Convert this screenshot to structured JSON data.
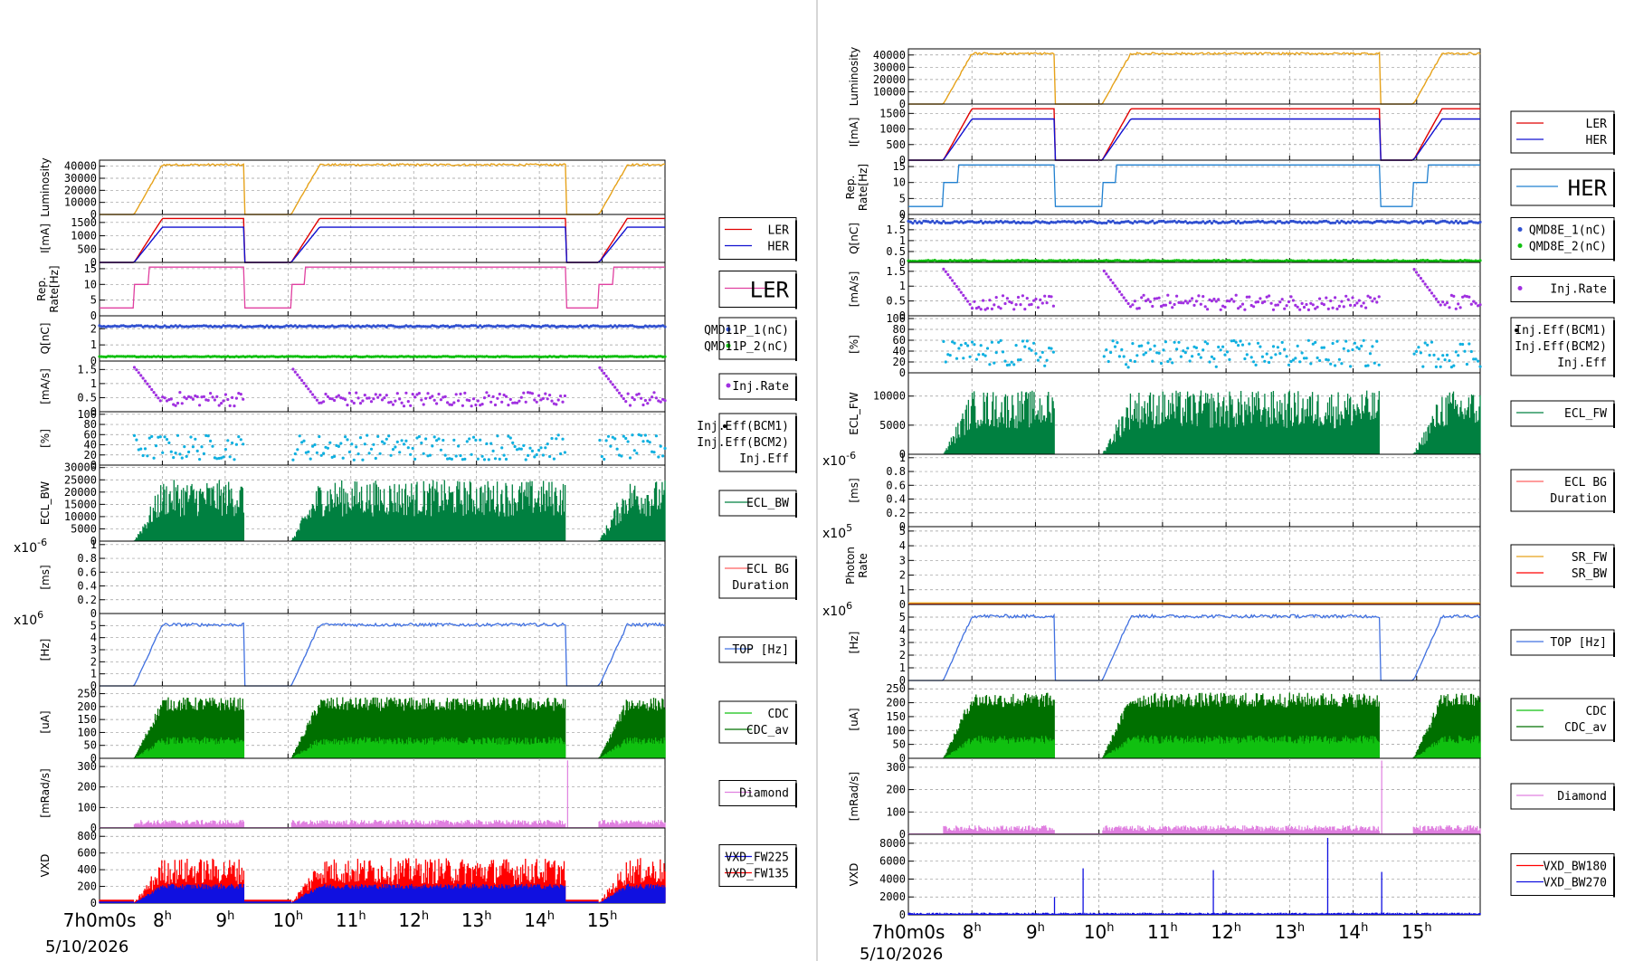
{
  "date_label": "5/10/2026",
  "time_axis": {
    "start_label": "7h0m0s",
    "tick_hours": [
      "8",
      "9",
      "10",
      "11",
      "12",
      "13",
      "14",
      "15"
    ],
    "xlim_hours": [
      7.0,
      16.0
    ]
  },
  "colors": {
    "luminosity": "#e6a21a",
    "ler": "#e00000",
    "her": "#1010d0",
    "rep_ler": "#e040a0",
    "rep_her": "#2080d0",
    "q1": "#3050d0",
    "q2": "#10c010",
    "injrate": "#a030e0",
    "injeff": "#10b0e0",
    "ecl": "#008040",
    "top": "#4070e0",
    "cdc": "#10c010",
    "cdc_av": "#007000",
    "diamond": "#e080e0",
    "vxd_blue": "#1010e0",
    "vxd_red": "#ff0000",
    "sr_fw": "#e6a21a",
    "sr_bw": "#ff0000",
    "ecl_bg": "#ff6060"
  },
  "chart_data": [
    {
      "id": "left",
      "type": "line",
      "panels": [
        {
          "ylabel": "Luminosity",
          "yticks": [
            "0",
            "10000",
            "20000",
            "30000",
            "40000"
          ],
          "yrange": [
            0,
            45000
          ],
          "curve": "lumi",
          "level": 42000,
          "legend": null
        },
        {
          "ylabel": "I[mA]",
          "yticks": [
            "0",
            "500",
            "1000",
            "1500"
          ],
          "yrange": [
            0,
            1800
          ],
          "curve": "currents",
          "legend": {
            "entries": [
              "LER",
              "HER"
            ],
            "colors": [
              "ler",
              "her"
            ]
          }
        },
        {
          "ylabel": "Rep. Rate[Hz]",
          "yticks": [
            "0",
            "5",
            "10",
            "15"
          ],
          "yrange": [
            0,
            17
          ],
          "curve": "rep_ler",
          "legend": {
            "entries": [
              "LER"
            ],
            "colors": [
              "rep_ler"
            ],
            "big": true
          }
        },
        {
          "ylabel": "Q[nC]",
          "yticks": [
            "0",
            "1",
            "2"
          ],
          "yrange": [
            0,
            2.8
          ],
          "curve": "charge",
          "legend": {
            "entries": [
              "QMD11P_1(nC)",
              "QMD11P_2(nC)"
            ],
            "colors": [
              "q1",
              "q2"
            ],
            "markers": true
          }
        },
        {
          "ylabel": "[mA/s]",
          "yticks": [
            "0",
            "0.5",
            "1",
            "1.5"
          ],
          "yrange": [
            0,
            1.8
          ],
          "curve": "injrate",
          "legend": {
            "entries": [
              "Inj.Rate"
            ],
            "colors": [
              "injrate"
            ],
            "markers": true
          }
        },
        {
          "ylabel": "[%]",
          "yticks": [
            "0",
            "20",
            "40",
            "60",
            "80",
            "100"
          ],
          "yrange": [
            0,
            105
          ],
          "curve": "injeff",
          "legend": {
            "entries": [
              "Inj.Eff(BCM1)",
              "Inj.Eff(BCM2)",
              "Inj.Eff"
            ],
            "colors": [
              "q1",
              "injeff",
              "injeff"
            ],
            "plain": true
          }
        },
        {
          "ylabel": "ECL_BW",
          "yticks": [
            "0",
            "5000",
            "10000",
            "15000",
            "20000",
            "25000",
            "30000"
          ],
          "yrange": [
            0,
            31000
          ],
          "curve": "ecl",
          "level": 25000,
          "legend": {
            "entries": [
              "ECL_BW"
            ],
            "colors": [
              "ecl"
            ]
          }
        },
        {
          "ylabel": "[ms]",
          "multiplier": "x10-6",
          "yticks": [
            "0",
            "0.2",
            "0.4",
            "0.6",
            "0.8",
            "1"
          ],
          "yrange": [
            0,
            1.05
          ],
          "curve": "none",
          "legend": {
            "entries": [
              "ECL BG",
              "Duration"
            ],
            "colors": [
              "ecl_bg",
              null
            ]
          }
        },
        {
          "ylabel": "[Hz]",
          "multiplier": "x106",
          "yticks": [
            "0",
            "1",
            "2",
            "3",
            "4",
            "5"
          ],
          "yrange": [
            0,
            6
          ],
          "curve": "top",
          "level": 5.2,
          "legend": {
            "entries": [
              "TOP [Hz]"
            ],
            "colors": [
              "top"
            ]
          }
        },
        {
          "ylabel": "[uA]",
          "yticks": [
            "0",
            "50",
            "100",
            "150",
            "200",
            "250"
          ],
          "yrange": [
            0,
            280
          ],
          "curve": "cdc",
          "legend": {
            "entries": [
              "CDC",
              "CDC_av"
            ],
            "colors": [
              "cdc",
              "cdc_av"
            ]
          }
        },
        {
          "ylabel": "[mRad/s]",
          "yticks": [
            "0",
            "100",
            "200",
            "300"
          ],
          "yrange": [
            0,
            340
          ],
          "curve": "diamond",
          "spike": 14.45,
          "legend": {
            "entries": [
              "Diamond"
            ],
            "colors": [
              "diamond"
            ]
          }
        },
        {
          "ylabel": "VXD",
          "yticks": [
            "0",
            "200",
            "400",
            "600",
            "800"
          ],
          "yrange": [
            0,
            900
          ],
          "curve": "vxd_left",
          "legend": {
            "entries": [
              "VXD_FW225",
              "VXD_FW135"
            ],
            "colors": [
              "vxd_blue",
              "vxd_red"
            ]
          }
        }
      ]
    },
    {
      "id": "right",
      "type": "line",
      "panels": [
        {
          "ylabel": "Luminosity",
          "yticks": [
            "0",
            "10000",
            "20000",
            "30000",
            "40000"
          ],
          "yrange": [
            0,
            45000
          ],
          "curve": "lumi",
          "level": 42000,
          "legend": null
        },
        {
          "ylabel": "I[mA]",
          "yticks": [
            "0",
            "500",
            "1000",
            "1500"
          ],
          "yrange": [
            0,
            1800
          ],
          "curve": "currents",
          "legend": {
            "entries": [
              "LER",
              "HER"
            ],
            "colors": [
              "ler",
              "her"
            ]
          }
        },
        {
          "ylabel": "Rep. Rate[Hz]",
          "yticks": [
            "0",
            "5",
            "10",
            "15"
          ],
          "yrange": [
            0,
            17
          ],
          "curve": "rep_her",
          "legend": {
            "entries": [
              "HER"
            ],
            "colors": [
              "rep_her"
            ],
            "big": true
          }
        },
        {
          "ylabel": "Q[nC]",
          "yticks": [
            "0",
            "0.5",
            "1",
            "1.5",
            "2"
          ],
          "yrange": [
            0,
            2.2
          ],
          "curve": "charge2",
          "legend": {
            "entries": [
              "QMD8E_1(nC)",
              "QMD8E_2(nC)"
            ],
            "colors": [
              "q1",
              "q2"
            ],
            "markers": true
          }
        },
        {
          "ylabel": "[mA/s]",
          "yticks": [
            "0",
            "0.5",
            "1",
            "1.5"
          ],
          "yrange": [
            0,
            1.8
          ],
          "curve": "injrate",
          "legend": {
            "entries": [
              "Inj.Rate"
            ],
            "colors": [
              "injrate"
            ],
            "markers": true
          }
        },
        {
          "ylabel": "[%]",
          "yticks": [
            "0",
            "20",
            "40",
            "60",
            "80",
            "100"
          ],
          "yrange": [
            0,
            105
          ],
          "curve": "injeff",
          "legend": {
            "entries": [
              "Inj.Eff(BCM1)",
              "Inj.Eff(BCM2)",
              "Inj.Eff"
            ],
            "colors": [
              "q1",
              "injeff",
              "injeff"
            ],
            "plain": true
          }
        },
        {
          "ylabel": "ECL_FW",
          "yticks": [
            "0",
            "5000",
            "10000"
          ],
          "yrange": [
            0,
            14000
          ],
          "curve": "ecl",
          "level": 11000,
          "legend": {
            "entries": [
              "ECL_FW"
            ],
            "colors": [
              "ecl"
            ]
          }
        },
        {
          "ylabel": "[ms]",
          "multiplier": "x10-6",
          "yticks": [
            "0",
            "0.2",
            "0.4",
            "0.6",
            "0.8",
            "1"
          ],
          "yrange": [
            0,
            1.05
          ],
          "curve": "none",
          "legend": {
            "entries": [
              "ECL BG",
              "Duration"
            ],
            "colors": [
              "ecl_bg",
              null
            ]
          }
        },
        {
          "ylabel": "Photon Rate",
          "multiplier": "x105",
          "yticks": [
            "0",
            "1",
            "2",
            "3",
            "4",
            "5"
          ],
          "yrange": [
            0,
            5.3
          ],
          "curve": "sr",
          "legend": {
            "entries": [
              "SR_FW",
              "SR_BW"
            ],
            "colors": [
              "sr_fw",
              "sr_bw"
            ]
          }
        },
        {
          "ylabel": "[Hz]",
          "multiplier": "x106",
          "yticks": [
            "0",
            "1",
            "2",
            "3",
            "4",
            "5"
          ],
          "yrange": [
            0,
            6
          ],
          "curve": "top",
          "level": 5.2,
          "legend": {
            "entries": [
              "TOP [Hz]"
            ],
            "colors": [
              "top"
            ]
          }
        },
        {
          "ylabel": "[uA]",
          "yticks": [
            "0",
            "50",
            "100",
            "150",
            "200",
            "250"
          ],
          "yrange": [
            0,
            280
          ],
          "curve": "cdc",
          "legend": {
            "entries": [
              "CDC",
              "CDC_av"
            ],
            "colors": [
              "cdc",
              "cdc_av"
            ]
          }
        },
        {
          "ylabel": "[mRad/s]",
          "yticks": [
            "0",
            "100",
            "200",
            "300"
          ],
          "yrange": [
            0,
            340
          ],
          "curve": "diamond",
          "spike": 14.45,
          "legend": {
            "entries": [
              "Diamond"
            ],
            "colors": [
              "diamond"
            ]
          }
        },
        {
          "ylabel": "VXD",
          "yticks": [
            "0",
            "2000",
            "4000",
            "6000",
            "8000"
          ],
          "yrange": [
            0,
            9000
          ],
          "curve": "vxd_right",
          "legend": {
            "entries": [
              "VXD_BW180",
              "VXD_BW270"
            ],
            "colors": [
              "vxd_red",
              "vxd_blue"
            ]
          }
        }
      ]
    }
  ]
}
